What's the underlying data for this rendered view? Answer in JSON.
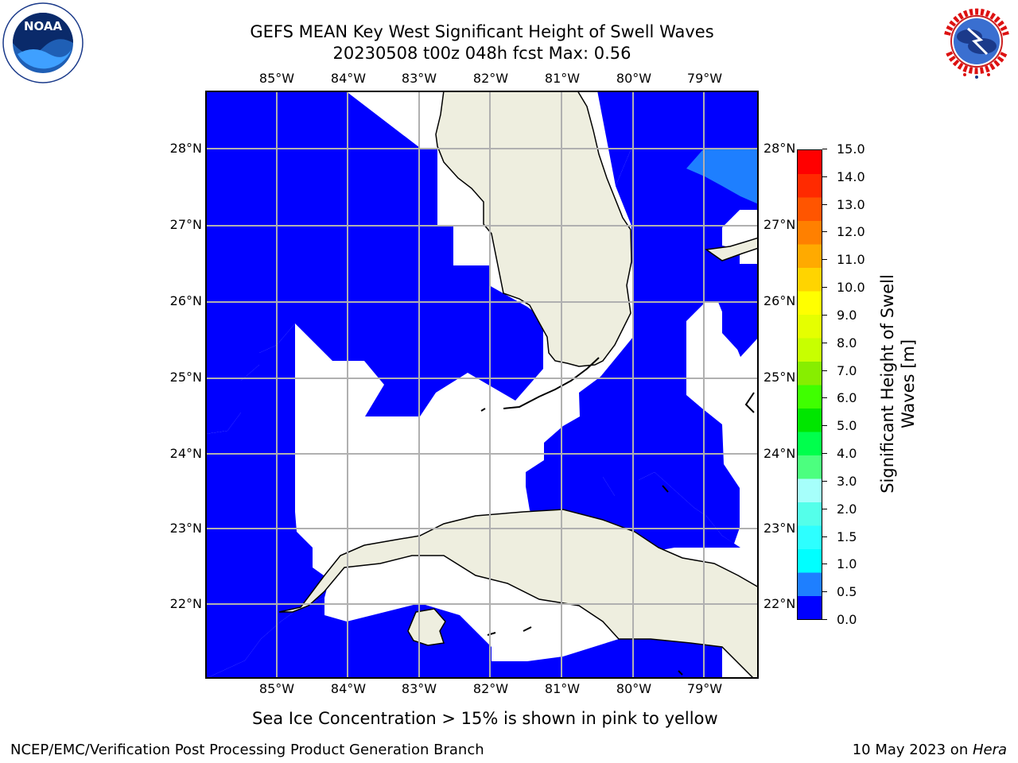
{
  "header": {
    "title_line1": "GEFS MEAN Key West Significant Height of Swell Waves",
    "title_line2": "20230508 t00z 048h fcst   Max: 0.56"
  },
  "logos": {
    "left": "NOAA",
    "left_ring": "NATIONAL OCEANIC AND ATMOSPHERIC ADMINISTRATION · U.S. DEPARTMENT OF COMMERCE",
    "right_ring": "NATIONAL WEATHER SERVICE"
  },
  "map": {
    "lon_labels": [
      "85°W",
      "84°W",
      "83°W",
      "82°W",
      "81°W",
      "80°W",
      "79°W"
    ],
    "lat_labels": [
      "28°N",
      "27°N",
      "26°N",
      "25°N",
      "24°N",
      "23°N",
      "22°N"
    ],
    "colors": {
      "ocean_swell": "#0000ff",
      "ocean_swell_high": "#1e7fff",
      "land": "#eeeedf",
      "grid": "#b0b0b0"
    }
  },
  "colorbar": {
    "title_line1": "Significant Height of Swell",
    "title_line2": "Waves [m]",
    "tick_labels": [
      "15.0",
      "14.0",
      "13.0",
      "12.0",
      "11.0",
      "10.0",
      "9.0",
      "8.0",
      "7.0",
      "6.0",
      "5.0",
      "4.0",
      "3.0",
      "2.0",
      "1.5",
      "1.0",
      "0.5",
      "0.0"
    ],
    "colors_bottom_to_top": [
      "#0000ff",
      "#1e7fff",
      "#00ffff",
      "#2dffff",
      "#54ffea",
      "#a6fffb",
      "#4cff7f",
      "#00ff4c",
      "#00e600",
      "#3fff00",
      "#87ee00",
      "#c8ff00",
      "#e5ff00",
      "#ffff00",
      "#ffd400",
      "#ffaa00",
      "#ff8000",
      "#ff5500",
      "#ff2a00",
      "#ff0000"
    ]
  },
  "footer": {
    "sea_ice_note": "Sea Ice Concentration > 15% is shown in pink to yellow",
    "credit": "NCEP/EMC/Verification Post Processing Product Generation Branch",
    "date_prefix": "10 May 2023 on ",
    "host": "Hera"
  }
}
